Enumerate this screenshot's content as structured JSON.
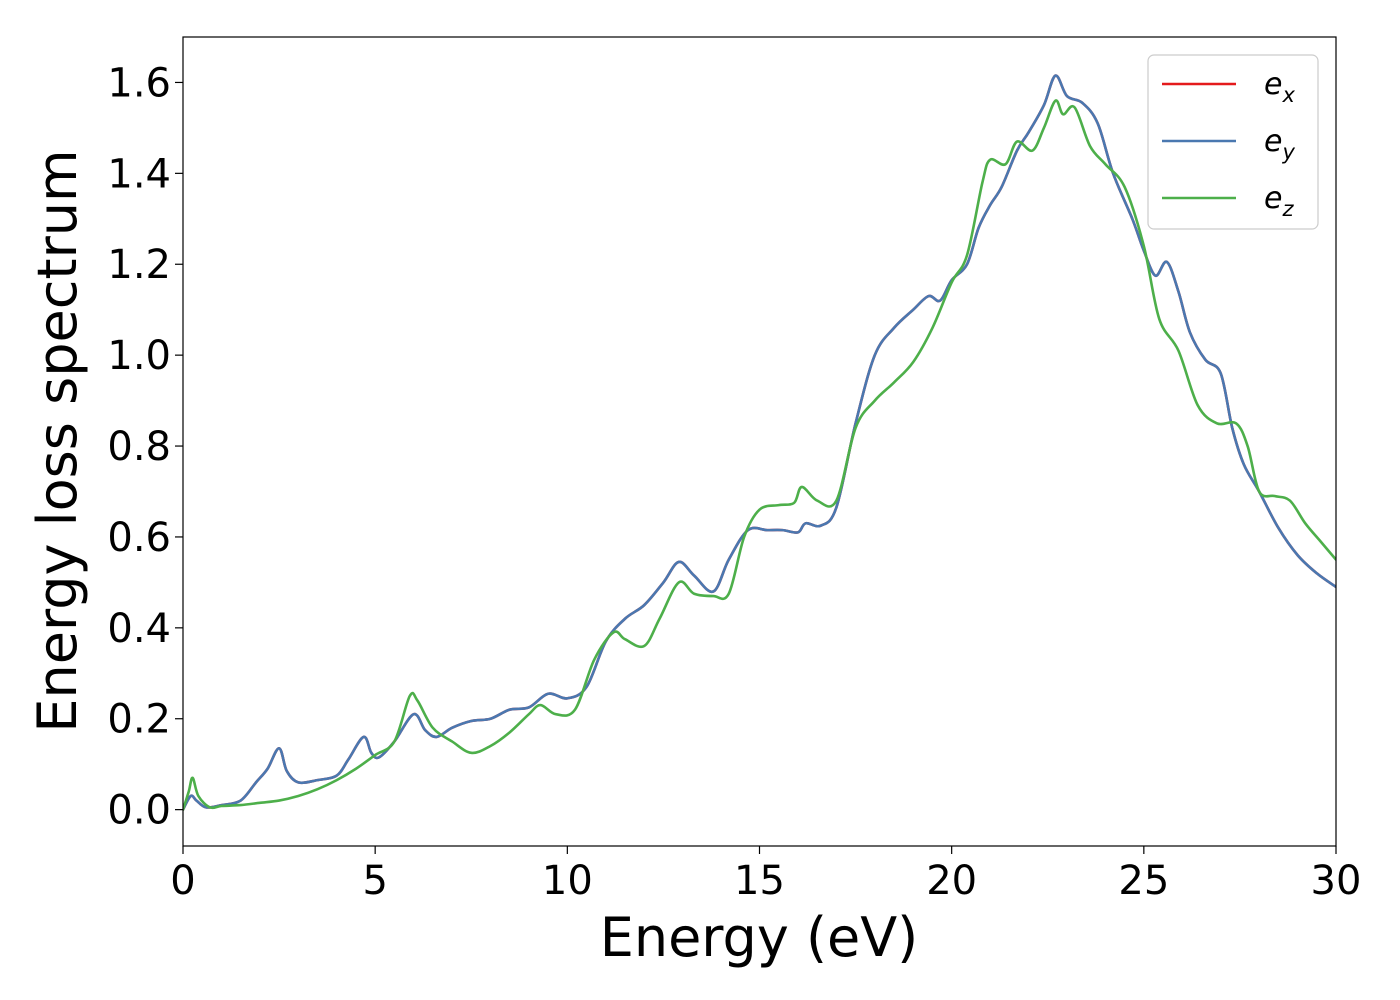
{
  "chart_data": {
    "type": "line",
    "xlabel": "Energy (eV)",
    "ylabel": "Energy loss spectrum",
    "xlim": [
      0,
      30
    ],
    "ylim": [
      -0.08,
      1.7
    ],
    "x_ticks": [
      "0",
      "5",
      "10",
      "15",
      "20",
      "25",
      "30"
    ],
    "y_ticks": [
      "0.0",
      "0.2",
      "0.4",
      "0.6",
      "0.8",
      "1.0",
      "1.2",
      "1.4",
      "1.6"
    ],
    "grid": false,
    "legend_position": "top-right",
    "series": [
      {
        "name": "e_x",
        "legend_base": "e",
        "legend_sub": "x",
        "color": "#e41a1c",
        "x": [
          0,
          0.2,
          0.35,
          0.6,
          1.0,
          1.5,
          1.9,
          2.2,
          2.5,
          2.7,
          3.0,
          3.5,
          4.0,
          4.3,
          4.7,
          4.9,
          5.1,
          5.5,
          6.0,
          6.3,
          6.6,
          7.0,
          7.5,
          8.0,
          8.5,
          9.0,
          9.5,
          10.0,
          10.5,
          11.0,
          11.5,
          12.0,
          12.5,
          12.9,
          13.3,
          13.8,
          14.2,
          14.7,
          15.2,
          15.6,
          16.0,
          16.2,
          16.6,
          17.0,
          17.5,
          18.0,
          18.5,
          19.0,
          19.4,
          19.7,
          20.0,
          20.4,
          20.7,
          21.0,
          21.3,
          21.7,
          22.0,
          22.4,
          22.7,
          23.0,
          23.4,
          23.8,
          24.2,
          24.7,
          25.0,
          25.3,
          25.6,
          25.9,
          26.2,
          26.6,
          27.0,
          27.3,
          27.6,
          28.0,
          28.5,
          29.0,
          29.5,
          30.0
        ],
        "y": [
          0.0,
          0.03,
          0.02,
          0.005,
          0.01,
          0.02,
          0.06,
          0.09,
          0.135,
          0.085,
          0.06,
          0.065,
          0.075,
          0.11,
          0.16,
          0.125,
          0.115,
          0.15,
          0.21,
          0.175,
          0.16,
          0.18,
          0.195,
          0.2,
          0.22,
          0.225,
          0.255,
          0.245,
          0.27,
          0.37,
          0.42,
          0.45,
          0.5,
          0.545,
          0.515,
          0.48,
          0.55,
          0.615,
          0.615,
          0.615,
          0.61,
          0.63,
          0.625,
          0.665,
          0.85,
          1.0,
          1.06,
          1.1,
          1.13,
          1.12,
          1.165,
          1.2,
          1.28,
          1.33,
          1.37,
          1.45,
          1.49,
          1.55,
          1.615,
          1.57,
          1.555,
          1.51,
          1.4,
          1.3,
          1.23,
          1.175,
          1.205,
          1.14,
          1.05,
          0.99,
          0.96,
          0.84,
          0.76,
          0.7,
          0.62,
          0.56,
          0.52,
          0.49
        ]
      },
      {
        "name": "e_y",
        "legend_base": "e",
        "legend_sub": "y",
        "color": "#4a78b0",
        "x": [
          0,
          0.2,
          0.35,
          0.6,
          1.0,
          1.5,
          1.9,
          2.2,
          2.5,
          2.7,
          3.0,
          3.5,
          4.0,
          4.3,
          4.7,
          4.9,
          5.1,
          5.5,
          6.0,
          6.3,
          6.6,
          7.0,
          7.5,
          8.0,
          8.5,
          9.0,
          9.5,
          10.0,
          10.5,
          11.0,
          11.5,
          12.0,
          12.5,
          12.9,
          13.3,
          13.8,
          14.2,
          14.7,
          15.2,
          15.6,
          16.0,
          16.2,
          16.6,
          17.0,
          17.5,
          18.0,
          18.5,
          19.0,
          19.4,
          19.7,
          20.0,
          20.4,
          20.7,
          21.0,
          21.3,
          21.7,
          22.0,
          22.4,
          22.7,
          23.0,
          23.4,
          23.8,
          24.2,
          24.7,
          25.0,
          25.3,
          25.6,
          25.9,
          26.2,
          26.6,
          27.0,
          27.3,
          27.6,
          28.0,
          28.5,
          29.0,
          29.5,
          30.0
        ],
        "y": [
          0.0,
          0.03,
          0.02,
          0.005,
          0.01,
          0.02,
          0.06,
          0.09,
          0.135,
          0.085,
          0.06,
          0.065,
          0.075,
          0.11,
          0.16,
          0.125,
          0.115,
          0.15,
          0.21,
          0.175,
          0.16,
          0.18,
          0.195,
          0.2,
          0.22,
          0.225,
          0.255,
          0.245,
          0.27,
          0.37,
          0.42,
          0.45,
          0.5,
          0.545,
          0.515,
          0.48,
          0.55,
          0.615,
          0.615,
          0.615,
          0.61,
          0.63,
          0.625,
          0.665,
          0.85,
          1.0,
          1.06,
          1.1,
          1.13,
          1.12,
          1.165,
          1.2,
          1.28,
          1.33,
          1.37,
          1.45,
          1.49,
          1.55,
          1.615,
          1.57,
          1.555,
          1.51,
          1.4,
          1.3,
          1.23,
          1.175,
          1.205,
          1.14,
          1.05,
          0.99,
          0.96,
          0.84,
          0.76,
          0.7,
          0.62,
          0.56,
          0.52,
          0.49
        ]
      },
      {
        "name": "e_z",
        "legend_base": "e",
        "legend_sub": "z",
        "color": "#4daf4a",
        "x": [
          0,
          0.15,
          0.25,
          0.4,
          0.7,
          1.0,
          1.5,
          2.0,
          2.5,
          3.0,
          3.5,
          4.0,
          4.5,
          5.0,
          5.5,
          5.9,
          6.1,
          6.5,
          7.0,
          7.5,
          8.0,
          8.5,
          9.0,
          9.3,
          9.7,
          10.2,
          10.7,
          11.2,
          11.5,
          12.0,
          12.4,
          12.9,
          13.3,
          13.8,
          14.2,
          14.6,
          15.0,
          15.5,
          15.9,
          16.1,
          16.5,
          17.0,
          17.5,
          18.0,
          18.5,
          19.0,
          19.5,
          20.0,
          20.4,
          20.8,
          21.0,
          21.4,
          21.7,
          22.1,
          22.4,
          22.7,
          22.9,
          23.2,
          23.6,
          24.0,
          24.5,
          25.0,
          25.4,
          25.9,
          26.4,
          26.9,
          27.4,
          27.7,
          28.0,
          28.4,
          28.8,
          29.2,
          29.6,
          30.0
        ],
        "y": [
          0.0,
          0.04,
          0.07,
          0.03,
          0.005,
          0.008,
          0.01,
          0.015,
          0.02,
          0.03,
          0.045,
          0.065,
          0.09,
          0.12,
          0.15,
          0.25,
          0.24,
          0.18,
          0.15,
          0.125,
          0.14,
          0.17,
          0.21,
          0.23,
          0.21,
          0.22,
          0.33,
          0.39,
          0.375,
          0.36,
          0.42,
          0.5,
          0.475,
          0.47,
          0.475,
          0.6,
          0.66,
          0.67,
          0.675,
          0.71,
          0.68,
          0.68,
          0.84,
          0.9,
          0.94,
          0.985,
          1.06,
          1.16,
          1.22,
          1.38,
          1.43,
          1.42,
          1.47,
          1.45,
          1.5,
          1.56,
          1.53,
          1.545,
          1.46,
          1.42,
          1.37,
          1.24,
          1.08,
          1.01,
          0.89,
          0.85,
          0.85,
          0.8,
          0.7,
          0.69,
          0.68,
          0.63,
          0.59,
          0.55
        ]
      }
    ]
  }
}
